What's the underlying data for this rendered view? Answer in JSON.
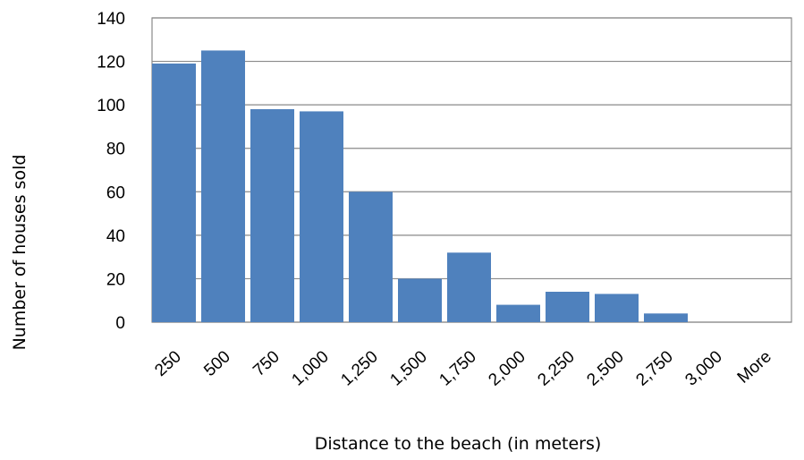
{
  "chart_data": {
    "type": "bar",
    "categories": [
      "250",
      "500",
      "750",
      "1,000",
      "1,250",
      "1,500",
      "1,750",
      "2,000",
      "2,250",
      "2,500",
      "2,750",
      "3,000",
      "More"
    ],
    "values": [
      119,
      125,
      98,
      97,
      60,
      20,
      32,
      8,
      14,
      13,
      4,
      0,
      0
    ],
    "xlabel": "Distance to the beach (in meters)",
    "ylabel": "Number of houses sold",
    "ylim": [
      0,
      140
    ],
    "yticks": [
      "0",
      "20",
      "40",
      "60",
      "80",
      "100",
      "120",
      "140"
    ],
    "grid": true,
    "bar_color": "#4f81bd"
  }
}
